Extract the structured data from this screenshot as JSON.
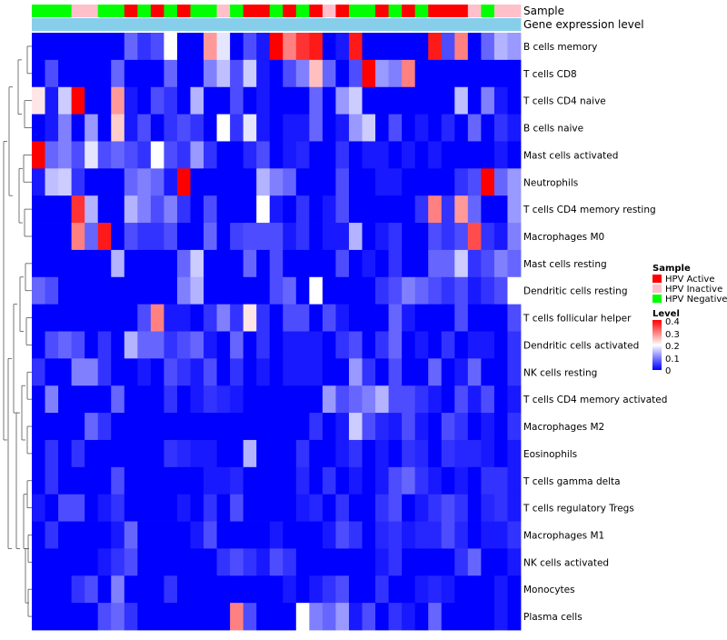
{
  "chart_data": {
    "type": "heatmap",
    "annotation_tracks": [
      {
        "name": "Sample",
        "values": [
          "HPV Negative",
          "HPV Negative",
          "HPV Negative",
          "HPV Inactive",
          "HPV Inactive",
          "HPV Negative",
          "HPV Negative",
          "HPV Active",
          "HPV Negative",
          "HPV Active",
          "HPV Negative",
          "HPV Active",
          "HPV Negative",
          "HPV Negative",
          "HPV Inactive",
          "HPV Negative",
          "HPV Active",
          "HPV Active",
          "HPV Negative",
          "HPV Active",
          "HPV Negative",
          "HPV Active",
          "HPV Inactive",
          "HPV Active",
          "HPV Negative",
          "HPV Negative",
          "HPV Active",
          "HPV Negative",
          "HPV Active",
          "HPV Negative",
          "HPV Active",
          "HPV Active",
          "HPV Active",
          "HPV Inactive",
          "HPV Negative",
          "HPV Inactive",
          "HPV Inactive"
        ]
      },
      {
        "name": "Gene expression level",
        "values": [
          "level",
          "level",
          "level",
          "level",
          "level",
          "level",
          "level",
          "level",
          "level",
          "level",
          "level",
          "level",
          "level",
          "level",
          "level",
          "level",
          "level",
          "level",
          "level",
          "level",
          "level",
          "level",
          "level",
          "level",
          "level",
          "level",
          "level",
          "level",
          "level",
          "level",
          "level",
          "level",
          "level",
          "level",
          "level",
          "level",
          "level"
        ]
      }
    ],
    "rows": [
      "B cells memory",
      "T cells CD8",
      "T cells CD4 naive",
      "B cells naive",
      "Mast cells activated",
      "Neutrophils",
      "T cells CD4 memory resting",
      "Macrophages M0",
      "Mast cells resting",
      "Dendritic cells resting",
      "T cells follicular helper",
      "Dendritic cells activated",
      "NK cells resting",
      "T cells CD4 memory activated",
      "Macrophages M2",
      "Eosinophils",
      "T cells gamma delta",
      "T cells regulatory  Tregs",
      "Macrophages M1",
      "NK cells activated",
      "Monocytes",
      "Plasma cells"
    ],
    "values": [
      [
        0,
        0,
        0,
        0,
        0,
        0,
        0,
        0.08,
        0.04,
        0.06,
        0.2,
        0,
        0,
        0.28,
        0.18,
        0,
        0.06,
        0.02,
        0.4,
        0.3,
        0.36,
        0.38,
        0,
        0.02,
        0.38,
        0,
        0,
        0,
        0,
        0,
        0.38,
        0.06,
        0.3,
        0,
        0.08,
        0.14,
        0.12
      ],
      [
        0,
        0.06,
        0,
        0,
        0,
        0,
        0.08,
        0,
        0,
        0,
        0.08,
        0,
        0,
        0.1,
        0.15,
        0.06,
        0.16,
        0.02,
        0,
        0.06,
        0.1,
        0.25,
        0.08,
        0,
        0.06,
        0.4,
        0.12,
        0.1,
        0.3,
        0,
        0,
        0,
        0,
        0,
        0,
        0,
        0
      ],
      [
        0.22,
        0.02,
        0.16,
        0.4,
        0,
        0,
        0.28,
        0.02,
        0,
        0.06,
        0.04,
        0,
        0.14,
        0,
        0,
        0.06,
        0,
        0.02,
        0,
        0,
        0,
        0.08,
        0,
        0.12,
        0.16,
        0,
        0,
        0,
        0,
        0,
        0,
        0,
        0.15,
        0,
        0.1,
        0.02,
        0
      ],
      [
        0,
        0.02,
        0.1,
        0,
        0.12,
        0,
        0.24,
        0.02,
        0.06,
        0,
        0.04,
        0.06,
        0.04,
        0,
        0.2,
        0.04,
        0.18,
        0.02,
        0,
        0.02,
        0.02,
        0.08,
        0,
        0.02,
        0.12,
        0.16,
        0,
        0.06,
        0,
        0.02,
        0,
        0.03,
        0,
        0.08,
        0,
        0.04,
        0.02
      ],
      [
        0.42,
        0.08,
        0.1,
        0.06,
        0.18,
        0.06,
        0.08,
        0.06,
        0.04,
        0.2,
        0.06,
        0.04,
        0.12,
        0.04,
        0,
        0,
        0.03,
        0.06,
        0,
        0.02,
        0.03,
        0,
        0,
        0.04,
        0,
        0.02,
        0.02,
        0,
        0.02,
        0,
        0.02,
        0,
        0,
        0,
        0,
        0.02,
        0
      ],
      [
        0.02,
        0.15,
        0.16,
        0.04,
        0,
        0,
        0,
        0.08,
        0.1,
        0.08,
        0.02,
        0.42,
        0,
        0,
        0,
        0,
        0,
        0.14,
        0.1,
        0.08,
        0,
        0,
        0,
        0.06,
        0,
        0,
        0.02,
        0.02,
        0,
        0,
        0,
        0,
        0.04,
        0.06,
        0.4,
        0.08,
        0.12
      ],
      [
        0,
        0,
        0,
        0.36,
        0.14,
        0,
        0,
        0.14,
        0.1,
        0.06,
        0.1,
        0.04,
        0,
        0.06,
        0,
        0,
        0,
        0.2,
        0.02,
        0,
        0.04,
        0,
        0.02,
        0.06,
        0,
        0,
        0,
        0,
        0,
        0.04,
        0.3,
        0.04,
        0.28,
        0.08,
        0,
        0,
        0.12
      ],
      [
        0,
        0,
        0,
        0.3,
        0.08,
        0.38,
        0,
        0.06,
        0.04,
        0.04,
        0.06,
        0,
        0,
        0.08,
        0,
        0.05,
        0.06,
        0.06,
        0.06,
        0.02,
        0.04,
        0,
        0.02,
        0.02,
        0.14,
        0,
        0.02,
        0.04,
        0,
        0,
        0.06,
        0.04,
        0.06,
        0.34,
        0.04,
        0.02,
        0.1
      ],
      [
        0,
        0,
        0,
        0,
        0,
        0,
        0.14,
        0,
        0,
        0,
        0,
        0.08,
        0.16,
        0,
        0,
        0,
        0.08,
        0,
        0.06,
        0,
        0,
        0,
        0,
        0.06,
        0,
        0.02,
        0,
        0.04,
        0,
        0,
        0.08,
        0.08,
        0.16,
        0.04,
        0.06,
        0.1,
        0.08
      ],
      [
        0.08,
        0.06,
        0,
        0,
        0,
        0,
        0,
        0,
        0,
        0,
        0,
        0.1,
        0.14,
        0,
        0,
        0,
        0,
        0,
        0.06,
        0.08,
        0,
        0.2,
        0,
        0,
        0,
        0,
        0.04,
        0.06,
        0.1,
        0.08,
        0.06,
        0.04,
        0.06,
        0.02,
        0.04,
        0.06,
        0.2
      ],
      [
        0,
        0,
        0,
        0,
        0,
        0,
        0,
        0,
        0.06,
        0.3,
        0.02,
        0.02,
        0,
        0.04,
        0.1,
        0.04,
        0.22,
        0.04,
        0,
        0.06,
        0.06,
        0,
        0.06,
        0.02,
        0,
        0,
        0,
        0.08,
        0.02,
        0,
        0,
        0,
        0.06,
        0,
        0,
        0,
        0.06
      ],
      [
        0,
        0.06,
        0.08,
        0.06,
        0,
        0.04,
        0,
        0.14,
        0.08,
        0.08,
        0.04,
        0.06,
        0.08,
        0.02,
        0,
        0.08,
        0,
        0.04,
        0,
        0.02,
        0.02,
        0.02,
        0,
        0.04,
        0.06,
        0,
        0.04,
        0.08,
        0,
        0.02,
        0,
        0.04,
        0,
        0.02,
        0.02,
        0,
        0.04
      ],
      [
        0.04,
        0,
        0,
        0.1,
        0.1,
        0.04,
        0,
        0,
        0.02,
        0,
        0.06,
        0.04,
        0.02,
        0.06,
        0,
        0.04,
        0,
        0.02,
        0,
        0.02,
        0.02,
        0.02,
        0,
        0,
        0.12,
        0.04,
        0,
        0.06,
        0,
        0,
        0.08,
        0,
        0.02,
        0.08,
        0,
        0,
        0.04
      ],
      [
        0,
        0.1,
        0,
        0,
        0,
        0,
        0.08,
        0,
        0,
        0,
        0.04,
        0,
        0.02,
        0.04,
        0.03,
        0.02,
        0,
        0,
        0,
        0,
        0,
        0,
        0.12,
        0.06,
        0.08,
        0.1,
        0.14,
        0.06,
        0.06,
        0.04,
        0.02,
        0,
        0.06,
        0.02,
        0.06,
        0,
        0.02
      ],
      [
        0,
        0,
        0,
        0,
        0.08,
        0.04,
        0,
        0,
        0,
        0,
        0,
        0,
        0,
        0,
        0,
        0,
        0,
        0,
        0,
        0,
        0,
        0.04,
        0,
        0.02,
        0.16,
        0.06,
        0.03,
        0.02,
        0.06,
        0.02,
        0,
        0.06,
        0.04,
        0,
        0.02,
        0,
        0.04
      ],
      [
        0,
        0.04,
        0,
        0.04,
        0,
        0,
        0,
        0,
        0,
        0,
        0.04,
        0.03,
        0.02,
        0.02,
        0,
        0,
        0.14,
        0,
        0,
        0,
        0.04,
        0,
        0,
        0.02,
        0.04,
        0,
        0.02,
        0,
        0.04,
        0.03,
        0,
        0.04,
        0.03,
        0.03,
        0.02,
        0,
        0.02
      ],
      [
        0,
        0.04,
        0,
        0,
        0,
        0,
        0.06,
        0,
        0,
        0,
        0,
        0,
        0,
        0.02,
        0.02,
        0.03,
        0,
        0,
        0,
        0,
        0.03,
        0,
        0.04,
        0,
        0.02,
        0,
        0.02,
        0.06,
        0.08,
        0.04,
        0.02,
        0,
        0.02,
        0,
        0.04,
        0.04,
        0.02
      ],
      [
        0.02,
        0,
        0.06,
        0.06,
        0,
        0.02,
        0.04,
        0,
        0,
        0,
        0,
        0.02,
        0,
        0.04,
        0,
        0.06,
        0,
        0,
        0,
        0,
        0.02,
        0.03,
        0,
        0.04,
        0,
        0,
        0.04,
        0.06,
        0,
        0.02,
        0.04,
        0.06,
        0.04,
        0,
        0.03,
        0.04,
        0.02
      ],
      [
        0,
        0.04,
        0,
        0,
        0,
        0,
        0.02,
        0.08,
        0,
        0,
        0,
        0,
        0.02,
        0.06,
        0,
        0,
        0,
        0,
        0.02,
        0,
        0,
        0,
        0.02,
        0.06,
        0.04,
        0,
        0.03,
        0.04,
        0.02,
        0.03,
        0.03,
        0.06,
        0.03,
        0,
        0.02,
        0.02,
        0.04
      ],
      [
        0,
        0,
        0,
        0,
        0,
        0.02,
        0.04,
        0.06,
        0,
        0,
        0,
        0,
        0,
        0,
        0.04,
        0.06,
        0.04,
        0.02,
        0.06,
        0.04,
        0,
        0,
        0,
        0,
        0,
        0,
        0.02,
        0.04,
        0,
        0,
        0,
        0,
        0.04,
        0.08,
        0,
        0,
        0.02
      ],
      [
        0,
        0,
        0,
        0.04,
        0.06,
        0,
        0.1,
        0,
        0,
        0,
        0.04,
        0,
        0,
        0,
        0,
        0,
        0,
        0,
        0,
        0.02,
        0,
        0.02,
        0.04,
        0.06,
        0,
        0,
        0.04,
        0,
        0,
        0.02,
        0.03,
        0.02,
        0,
        0,
        0,
        0.02,
        0
      ],
      [
        0,
        0,
        0,
        0,
        0,
        0.06,
        0.08,
        0.04,
        0,
        0,
        0,
        0,
        0,
        0,
        0,
        0.3,
        0.06,
        0,
        0,
        0,
        0.2,
        0.1,
        0.08,
        0.12,
        0.02,
        0.06,
        0,
        0.04,
        0.02,
        0,
        0.08,
        0,
        0,
        0,
        0,
        0.02,
        0
      ]
    ],
    "legend": {
      "sample_title": "Sample",
      "sample_entries": [
        {
          "label": "HPV Active",
          "color": "#ff0000"
        },
        {
          "label": "HPV Inactive",
          "color": "#ffc0cb"
        },
        {
          "label": "HPV Negative",
          "color": "#00ff00"
        }
      ],
      "level_title": "Level",
      "level_ticks": [
        "0.4",
        "0.3",
        "0.2",
        "0.1",
        "0"
      ],
      "placement": "right"
    },
    "color_scale": {
      "low": "#0000ff",
      "mid": "#ffffff",
      "high": "#ff0000",
      "min": 0,
      "max": 0.4
    },
    "annotation_colors": {
      "Gene expression level": "#87ceeb"
    },
    "dendrogram": "rows, left"
  }
}
